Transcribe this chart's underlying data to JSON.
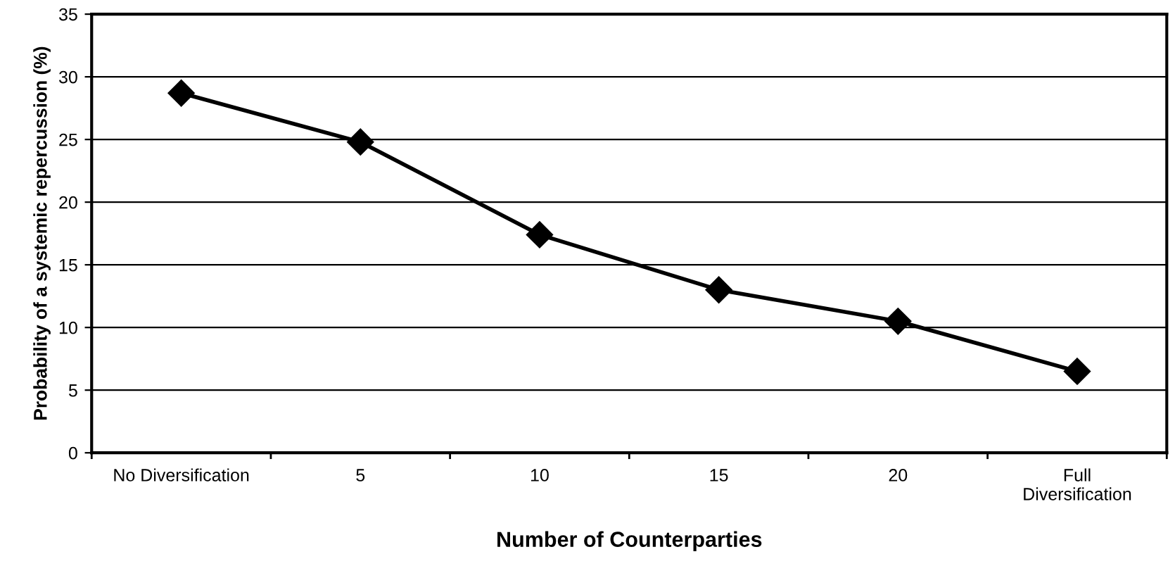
{
  "chart_data": {
    "type": "line",
    "xlabel": "Number of Counterparties",
    "ylabel": "Probability of a systemic repercussion (%)",
    "categories": [
      "No Diversification",
      "5",
      "10",
      "15",
      "20",
      "Full\nDiversification"
    ],
    "series": [
      {
        "color": "#000000",
        "values": [
          28.7,
          24.8,
          17.4,
          13.0,
          10.5,
          6.5
        ]
      }
    ],
    "ylim": [
      0,
      35
    ],
    "yticks": [
      0,
      5,
      10,
      15,
      20,
      25,
      30,
      35
    ],
    "grid": "y",
    "marker": "diamond",
    "line_style": "solid"
  }
}
